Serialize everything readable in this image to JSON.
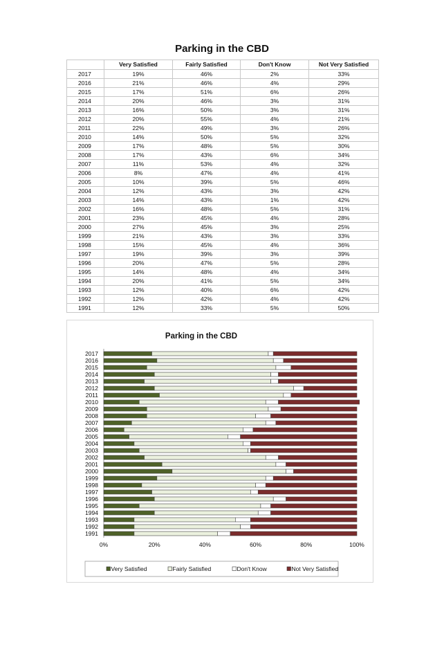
{
  "table": {
    "title": "Parking in the CBD",
    "headers": [
      "",
      "Very Satisfied",
      "Fairly Satisfied",
      "Don't Know",
      "Not Very Satisfied"
    ],
    "rows": [
      [
        "2017",
        "19%",
        "46%",
        "2%",
        "33%"
      ],
      [
        "2016",
        "21%",
        "46%",
        "4%",
        "29%"
      ],
      [
        "2015",
        "17%",
        "51%",
        "6%",
        "26%"
      ],
      [
        "2014",
        "20%",
        "46%",
        "3%",
        "31%"
      ],
      [
        "2013",
        "16%",
        "50%",
        "3%",
        "31%"
      ],
      [
        "2012",
        "20%",
        "55%",
        "4%",
        "21%"
      ],
      [
        "2011",
        "22%",
        "49%",
        "3%",
        "26%"
      ],
      [
        "2010",
        "14%",
        "50%",
        "5%",
        "32%"
      ],
      [
        "2009",
        "17%",
        "48%",
        "5%",
        "30%"
      ],
      [
        "2008",
        "17%",
        "43%",
        "6%",
        "34%"
      ],
      [
        "2007",
        "11%",
        "53%",
        "4%",
        "32%"
      ],
      [
        "2006",
        "8%",
        "47%",
        "4%",
        "41%"
      ],
      [
        "2005",
        "10%",
        "39%",
        "5%",
        "46%"
      ],
      [
        "2004",
        "12%",
        "43%",
        "3%",
        "42%"
      ],
      [
        "2003",
        "14%",
        "43%",
        "1%",
        "42%"
      ],
      [
        "2002",
        "16%",
        "48%",
        "5%",
        "31%"
      ],
      [
        "2001",
        "23%",
        "45%",
        "4%",
        "28%"
      ],
      [
        "2000",
        "27%",
        "45%",
        "3%",
        "25%"
      ],
      [
        "1999",
        "21%",
        "43%",
        "3%",
        "33%"
      ],
      [
        "1998",
        "15%",
        "45%",
        "4%",
        "36%"
      ],
      [
        "1997",
        "19%",
        "39%",
        "3%",
        "39%"
      ],
      [
        "1996",
        "20%",
        "47%",
        "5%",
        "28%"
      ],
      [
        "1995",
        "14%",
        "48%",
        "4%",
        "34%"
      ],
      [
        "1994",
        "20%",
        "41%",
        "5%",
        "34%"
      ],
      [
        "1993",
        "12%",
        "40%",
        "6%",
        "42%"
      ],
      [
        "1992",
        "12%",
        "42%",
        "4%",
        "42%"
      ],
      [
        "1991",
        "12%",
        "33%",
        "5%",
        "50%"
      ]
    ]
  },
  "chart_data": {
    "type": "bar",
    "orientation": "horizontal",
    "stacked": "percent",
    "title": "Parking in the CBD",
    "xlabel": "",
    "ylabel": "",
    "xlim": [
      0,
      100
    ],
    "x_ticks": [
      "0%",
      "20%",
      "40%",
      "60%",
      "80%",
      "100%"
    ],
    "grid": false,
    "legend_position": "bottom",
    "categories": [
      "2017",
      "2016",
      "2015",
      "2014",
      "2013",
      "2012",
      "2011",
      "2010",
      "2009",
      "2008",
      "2007",
      "2006",
      "2005",
      "2004",
      "2003",
      "2002",
      "2001",
      "2000",
      "1999",
      "1998",
      "1997",
      "1996",
      "1995",
      "1994",
      "1993",
      "1992",
      "1991"
    ],
    "series": [
      {
        "name": "Very Satisfied",
        "color": "#4f6228",
        "values": [
          19,
          21,
          17,
          20,
          16,
          20,
          22,
          14,
          17,
          17,
          11,
          8,
          10,
          12,
          14,
          16,
          23,
          27,
          21,
          15,
          19,
          20,
          14,
          20,
          12,
          12,
          12
        ]
      },
      {
        "name": "Fairly Satisfied",
        "color": "#ebf1de",
        "values": [
          46,
          46,
          51,
          46,
          50,
          55,
          49,
          50,
          48,
          43,
          53,
          47,
          39,
          43,
          43,
          48,
          45,
          45,
          43,
          45,
          39,
          47,
          48,
          41,
          40,
          42,
          33
        ]
      },
      {
        "name": "Don't Know",
        "color": "#ffffff",
        "values": [
          2,
          4,
          6,
          3,
          3,
          4,
          3,
          5,
          5,
          6,
          4,
          4,
          5,
          3,
          1,
          5,
          4,
          3,
          3,
          4,
          3,
          5,
          4,
          5,
          6,
          4,
          5
        ]
      },
      {
        "name": "Not Very Satisfied",
        "color": "#7b2c2c",
        "values": [
          33,
          29,
          26,
          31,
          31,
          21,
          26,
          32,
          30,
          34,
          32,
          41,
          46,
          42,
          42,
          31,
          28,
          25,
          33,
          36,
          39,
          28,
          34,
          34,
          42,
          42,
          50
        ]
      }
    ]
  }
}
